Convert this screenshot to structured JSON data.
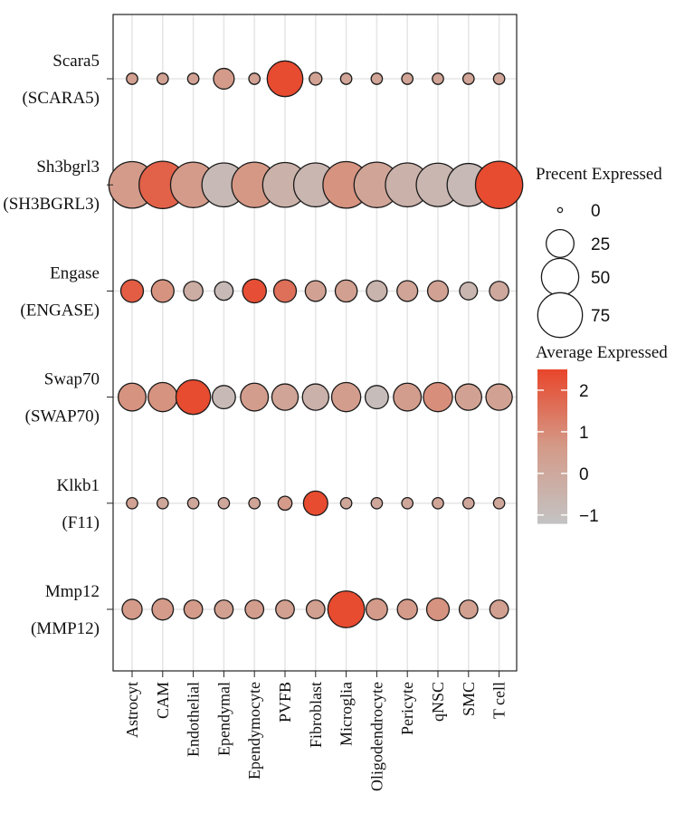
{
  "chart_data": {
    "type": "dotplot",
    "categories": [
      "Astrocyt",
      "CAM",
      "Endothelial",
      "Ependymal",
      "Ependymocyte",
      "PVFB",
      "Fibroblast",
      "Microglia",
      "Oligodendrocyte",
      "Pericyte",
      "qNSC",
      "SMC",
      "T cell"
    ],
    "genes": [
      {
        "label": "Scara5",
        "sublabel": "(SCARA5)",
        "pct": [
          2,
          2,
          2,
          12,
          2,
          45,
          3,
          2,
          2,
          2,
          2,
          2,
          2
        ],
        "avg": [
          0.4,
          0.3,
          0.3,
          0.6,
          0.3,
          2.4,
          0.3,
          0.2,
          0.2,
          0.2,
          0.2,
          0.2,
          0.2
        ]
      },
      {
        "label": "Sh3bgrl3",
        "sublabel": "(SH3BGRL3)",
        "pct": [
          82,
          85,
          78,
          72,
          78,
          75,
          72,
          82,
          78,
          72,
          70,
          68,
          85
        ],
        "avg": [
          0.6,
          1.9,
          0.6,
          -0.8,
          0.7,
          -0.4,
          -0.6,
          0.8,
          0.2,
          -0.4,
          -0.6,
          -0.8,
          2.4
        ]
      },
      {
        "label": "Engase",
        "sublabel": "(ENGASE)",
        "pct": [
          15,
          15,
          10,
          9,
          17,
          15,
          12,
          14,
          12,
          12,
          12,
          8,
          10
        ],
        "avg": [
          2.0,
          0.8,
          -0.2,
          -0.8,
          2.3,
          1.6,
          0.3,
          0.4,
          -0.5,
          0.2,
          0.3,
          -0.6,
          0.0
        ]
      },
      {
        "label": "Swap70",
        "sublabel": "(SWAP70)",
        "pct": [
          25,
          28,
          42,
          16,
          25,
          22,
          22,
          28,
          16,
          25,
          28,
          22,
          22
        ],
        "avg": [
          0.8,
          0.8,
          2.4,
          -0.8,
          0.5,
          0.2,
          -0.4,
          0.5,
          -0.9,
          0.5,
          0.9,
          0.3,
          0.3
        ]
      },
      {
        "label": "Klkb1",
        "sublabel": "(F11)",
        "pct": [
          2,
          2,
          2,
          2,
          2,
          4,
          18,
          2,
          2,
          2,
          2,
          2,
          2
        ],
        "avg": [
          0.3,
          0.1,
          0.1,
          0.1,
          0.2,
          0.6,
          2.4,
          0.1,
          0.1,
          0.1,
          0.2,
          0.1,
          0.1
        ]
      },
      {
        "label": "Mmp12",
        "sublabel": "(MMP12)",
        "pct": [
          11,
          13,
          9,
          9,
          9,
          9,
          9,
          48,
          13,
          11,
          15,
          9,
          9
        ],
        "avg": [
          0.6,
          0.6,
          0.6,
          0.4,
          0.5,
          0.4,
          0.4,
          2.4,
          0.6,
          0.6,
          0.8,
          0.4,
          0.4
        ]
      }
    ],
    "size_legend": {
      "title": "Precent Expressed",
      "ticks": [
        0,
        25,
        50,
        75
      ]
    },
    "color_legend": {
      "title": "Average Expressed",
      "ticks": [
        2,
        1,
        0,
        -1
      ],
      "tick_labels": [
        "2",
        "1",
        "0",
        "−1"
      ],
      "range": [
        -1.2,
        2.5
      ],
      "low_color": "#c3c3c3",
      "mid_color": "#d49a88",
      "high_color": "#e8462b"
    },
    "grid": true,
    "legend_position": "right"
  }
}
